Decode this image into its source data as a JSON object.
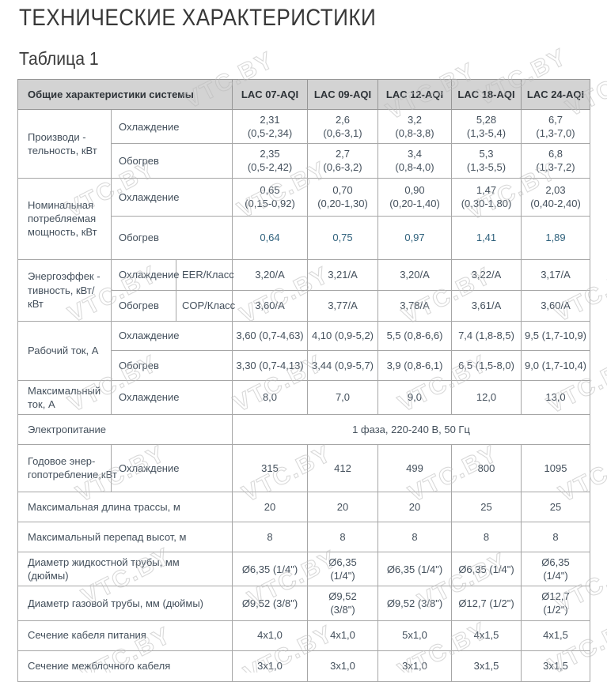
{
  "page": {
    "title": "ТЕХНИЧЕСКИЕ ХАРАКТЕРИСТИКИ",
    "table_caption": "Таблица 1"
  },
  "watermark": {
    "text": "VTC.BY"
  },
  "colors": {
    "header_bg": "#d3d3d3",
    "body_text": "#44505c",
    "accent_text": "#2f617c",
    "border": "#a6a6a6"
  },
  "table": {
    "header": [
      "Общие характеристики системы",
      "LAC 07-AQI",
      "LAC 09-AQI",
      "LAC 12-AQI",
      "LAC 18-AQI",
      "LAC 24-AQI"
    ],
    "rows": [
      {
        "label": "Производи -\nтельность, кВт",
        "sub": "Охлаждение",
        "values": [
          "2,31\n(0,5-2,34)",
          "2,6\n(0,6-3,1)",
          "3,2\n(0,8-3,8)",
          "5,28\n(1,3-5,4)",
          "6,7\n(1,3-7,0)"
        ]
      },
      {
        "sub": "Обогрев",
        "values": [
          "2,35\n(0,5-2,42)",
          "2,7\n(0,6-3,2)",
          "3,4\n(0,8-4,0)",
          "5,3\n(1,3-5,5)",
          "6,8\n(1,3-7,2)"
        ]
      },
      {
        "label": "Номинальная\nпотребляемая\nмощность, кВт",
        "sub": "Охлаждение",
        "values": [
          "0,65\n(0,15-0,92)",
          "0,70\n(0,20-1,30)",
          "0,90\n(0,20-1,40)",
          "1,47\n(0,30-1,80)",
          "2,03\n(0,40-2,40)"
        ]
      },
      {
        "sub": "Обогрев",
        "values": [
          "0,64",
          "0,75",
          "0,97",
          "1,41",
          "1,89"
        ]
      },
      {
        "label": "Энергоэффек -\nтивность, кВт/кВт",
        "sub": "Охлаждение",
        "sub2": "EER/Класс",
        "values": [
          "3,20/A",
          "3,21/A",
          "3,20/A",
          "3,22/A",
          "3,17/A"
        ]
      },
      {
        "sub": "Обогрев",
        "sub2": "COP/Класс",
        "values": [
          "3,60/A",
          "3,77/A",
          "3,78/A",
          "3,61/A",
          "3,60/A"
        ]
      },
      {
        "label": "Рабочий ток, А",
        "sub": "Охлаждение",
        "values": [
          "3,60 (0,7-4,63)",
          "4,10 (0,9-5,2)",
          "5,5 (0,8-6,6)",
          "7,4 (1,8-8,5)",
          "9,5 (1,7-10,9)"
        ]
      },
      {
        "sub": "Обогрев",
        "values": [
          "3,30 (0,7-4,13)",
          "3,44 (0,9-5,7)",
          "3,9 (0,8-6,1)",
          "6,5 (1,5-8,0)",
          "9,0 (1,7-10,4)"
        ]
      },
      {
        "label": "Максимальный\nток, А",
        "sub": "Охлаждение",
        "values": [
          "8,0",
          "7,0",
          "9,0",
          "12,0",
          "13,0"
        ]
      },
      {
        "label": "Электропитание",
        "span_value": "1 фаза, 220-240 В, 50 Гц"
      },
      {
        "label": "Годовое энер-\nгопотребление,кВт",
        "sub": "Охлаждение",
        "values": [
          "315",
          "412",
          "499",
          "800",
          "1095"
        ]
      },
      {
        "label": "Максимальная длина трассы, м",
        "values": [
          "20",
          "20",
          "20",
          "25",
          "25"
        ]
      },
      {
        "label": "Максимальный перепад высот, м",
        "values": [
          "8",
          "8",
          "8",
          "8",
          "8"
        ]
      },
      {
        "label": "Диаметр жидкостной трубы, мм\n(дюймы)",
        "values": [
          "Ø6,35 (1/4\")",
          "Ø6,35\n(1/4\")",
          "Ø6,35 (1/4\")",
          "Ø6,35 (1/4\")",
          "Ø6,35\n(1/4\")"
        ]
      },
      {
        "label": "Диаметр газовой трубы, мм (дюймы)",
        "values": [
          "Ø9,52 (3/8\")",
          "Ø9,52\n(3/8\")",
          "Ø9,52 (3/8\")",
          "Ø12,7 (1/2\")",
          "Ø12,7\n(1/2\")"
        ]
      },
      {
        "label": "Сечение кабеля питания",
        "values": [
          "4х1,0",
          "4х1,0",
          "5х1,0",
          "4х1,5",
          "4х1,5"
        ]
      },
      {
        "label": "Сечение межблочного кабеля",
        "values": [
          "3х1,0",
          "3х1,0",
          "3х1,0",
          "3х1,5",
          "3х1,5"
        ]
      }
    ]
  }
}
